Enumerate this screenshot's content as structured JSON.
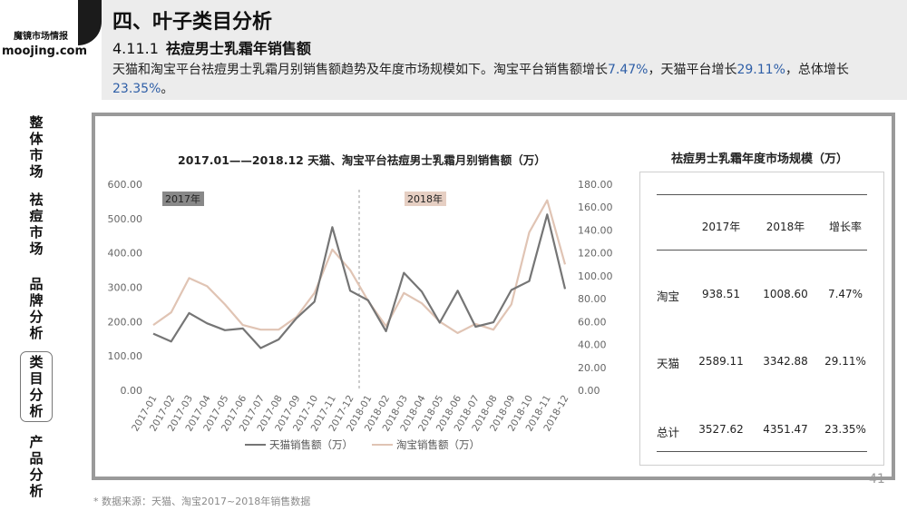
{
  "logo": {
    "line1": "魔镜市场情报",
    "line2": "moojing.com"
  },
  "nav": {
    "items": [
      {
        "label": [
          "整",
          "体",
          "市",
          "场"
        ]
      },
      {
        "label": [
          "祛",
          "痘",
          "市",
          "场"
        ]
      },
      {
        "label": [
          "品",
          "牌",
          "分",
          "析"
        ]
      },
      {
        "label": [
          "类",
          "目",
          "分",
          "析"
        ],
        "active": true
      },
      {
        "label": [
          "产",
          "品",
          "分",
          "析"
        ]
      }
    ]
  },
  "header": {
    "title": "四、叶子类目分析",
    "section_num": "4.11.1",
    "section_title": "祛痘男士乳霜年销售额",
    "desc_prefix": "天猫和淘宝平台祛痘男士乳霜月别销售额趋势及年度市场规模如下。淘宝平台销售额增长",
    "desc_v1": "7.47%",
    "desc_mid": "，天猫平台增长",
    "desc_v2": "29.11%",
    "desc_mid2": "，总体增长",
    "desc_v3": "23.35%",
    "desc_end": "。"
  },
  "chart_data": {
    "type": "line",
    "title": "2017.01——2018.12 天猫、淘宝平台祛痘男士乳霜月别销售额（万）",
    "x": [
      "2017-01",
      "2017-02",
      "2017-03",
      "2017-04",
      "2017-05",
      "2017-06",
      "2017-07",
      "2017-08",
      "2017-09",
      "2017-10",
      "2017-11",
      "2017-12",
      "2018-01",
      "2018-02",
      "2018-03",
      "2018-04",
      "2018-05",
      "2018-06",
      "2018-07",
      "2018-08",
      "2018-09",
      "2018-10",
      "2018-11",
      "2018-12"
    ],
    "y_left": {
      "ticks": [
        "0.00",
        "100.00",
        "200.00",
        "300.00",
        "400.00",
        "500.00",
        "600.00"
      ],
      "ylim": [
        0,
        600
      ]
    },
    "y_right": {
      "ticks": [
        "0.00",
        "20.00",
        "40.00",
        "60.00",
        "80.00",
        "100.00",
        "120.00",
        "140.00",
        "160.00",
        "180.00"
      ],
      "ylim": [
        0,
        180
      ]
    },
    "series": [
      {
        "name": "天猫销售额（万）",
        "axis": "left",
        "color": "#757575",
        "values": [
          165,
          142,
          225,
          195,
          175,
          180,
          123,
          148,
          210,
          258,
          475,
          290,
          262,
          172,
          342,
          287,
          197,
          290,
          185,
          198,
          292,
          318,
          512,
          295
        ]
      },
      {
        "name": "淘宝销售额（万）",
        "axis": "right",
        "color": "#e0c4b4",
        "values": [
          57,
          68,
          98,
          91,
          75,
          57,
          53,
          53,
          64,
          85,
          123,
          105,
          78,
          56,
          85,
          76,
          60,
          50,
          58,
          53,
          75,
          138,
          166,
          110
        ]
      }
    ],
    "annotations": [
      {
        "text": "2017年",
        "color": "#888888"
      },
      {
        "text": "2018年",
        "color": "#e6cfc3"
      }
    ],
    "grid": false,
    "legend": "bottom"
  },
  "table": {
    "title": "祛痘男士乳霜年度市场规模（万）",
    "headers": [
      "2017年",
      "2018年",
      "增长率"
    ],
    "rows": [
      {
        "label": "淘宝",
        "values": [
          "938.51",
          "1008.60",
          "7.47%"
        ]
      },
      {
        "label": "天猫",
        "values": [
          "2589.11",
          "3342.88",
          "29.11%"
        ]
      },
      {
        "label": "总计",
        "values": [
          "3527.62",
          "4351.47",
          "23.35%"
        ]
      }
    ]
  },
  "footnote": "* 数据来源：天猫、淘宝2017~2018年销售数据",
  "page_number": "41"
}
